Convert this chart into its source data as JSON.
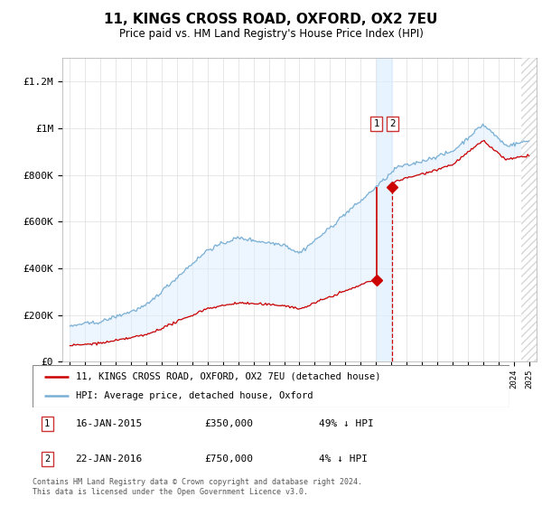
{
  "title": "11, KINGS CROSS ROAD, OXFORD, OX2 7EU",
  "subtitle": "Price paid vs. HM Land Registry's House Price Index (HPI)",
  "legend_line1": "11, KINGS CROSS ROAD, OXFORD, OX2 7EU (detached house)",
  "legend_line2": "HPI: Average price, detached house, Oxford",
  "transaction1_date": "16-JAN-2015",
  "transaction1_price": "£350,000",
  "transaction1_hpi": "49% ↓ HPI",
  "transaction2_date": "22-JAN-2016",
  "transaction2_price": "£750,000",
  "transaction2_hpi": "4% ↓ HPI",
  "footer": "Contains HM Land Registry data © Crown copyright and database right 2024.\nThis data is licensed under the Open Government Licence v3.0.",
  "ylim": [
    0,
    1300000
  ],
  "yticks": [
    0,
    200000,
    400000,
    600000,
    800000,
    1000000,
    1200000
  ],
  "ytick_labels": [
    "£0",
    "£200K",
    "£400K",
    "£600K",
    "£800K",
    "£1M",
    "£1.2M"
  ],
  "line_color_red": "#cc0000",
  "line_color_blue": "#7aafd4",
  "shade_color": "#ddeeff",
  "transaction1_year": 2015.04,
  "transaction2_year": 2016.06,
  "transaction1_price_val": 350000,
  "transaction2_price_val": 750000,
  "marker_box_color": "#cc3333",
  "background_color": "#ffffff"
}
